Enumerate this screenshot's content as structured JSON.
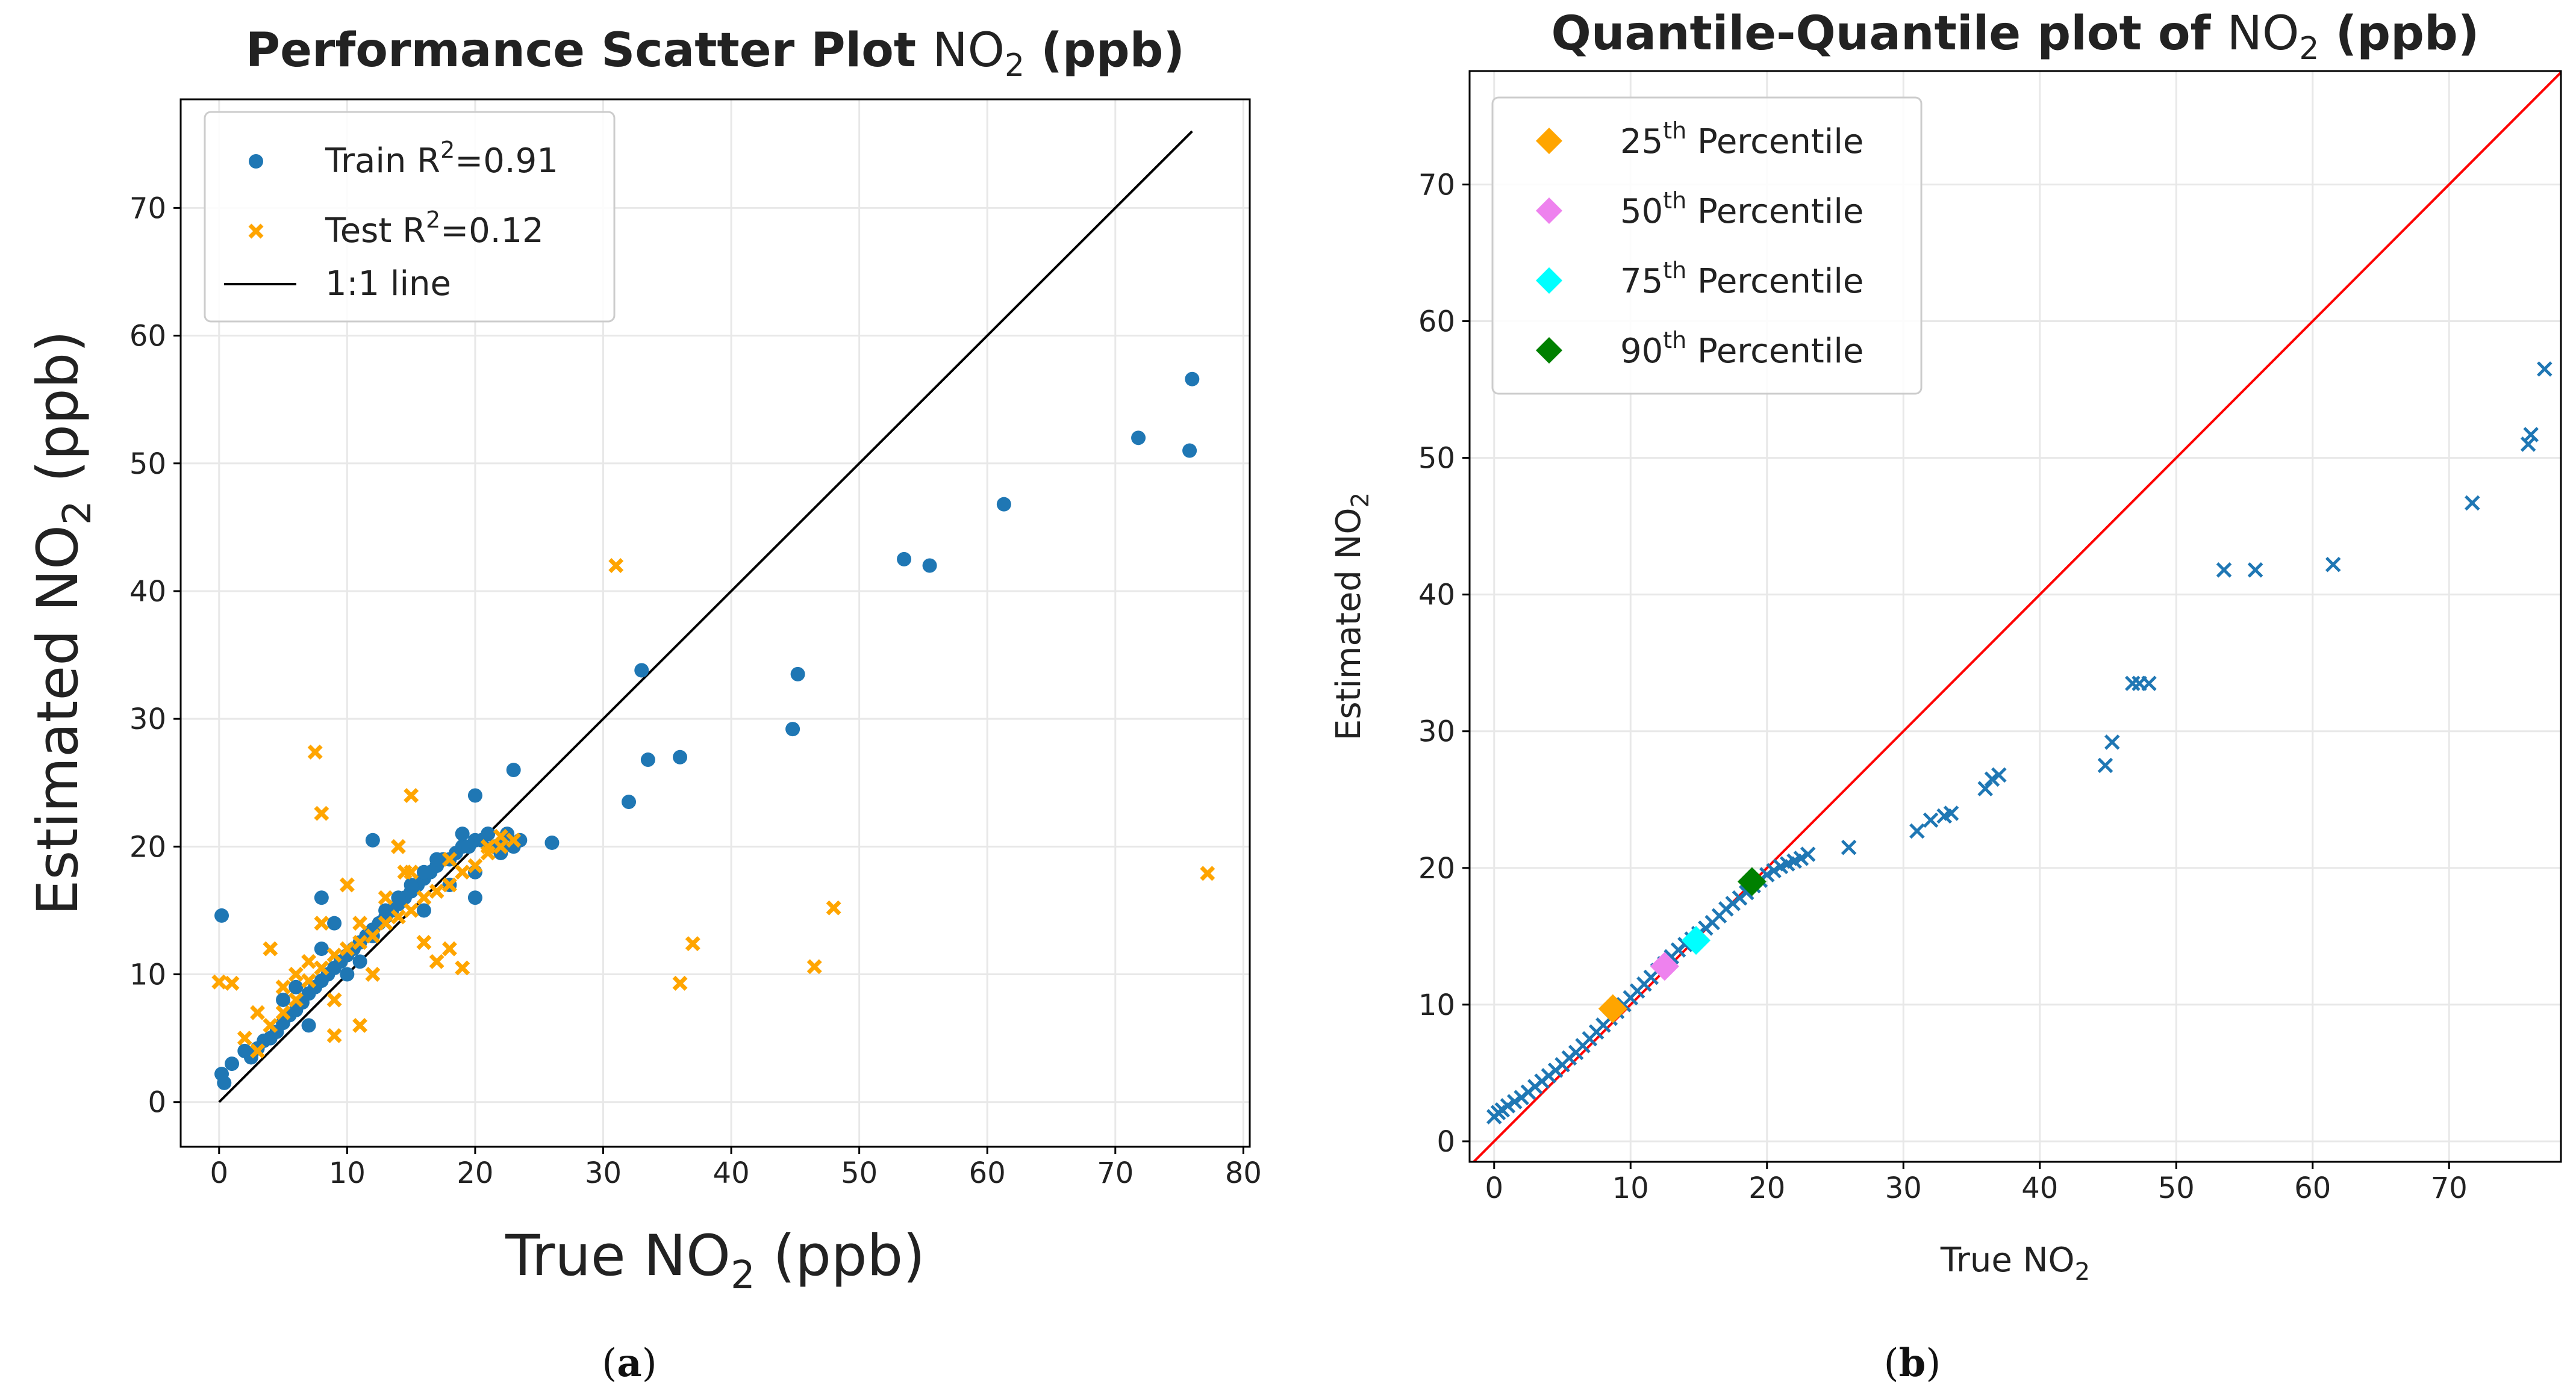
{
  "chart_data": [
    {
      "type": "scatter",
      "title": "Performance Scatter Plot",
      "title_species": "NO",
      "title_sub": "2",
      "title_unit": "(ppb)",
      "xlabel": "True NO",
      "xlabel_sub": "2",
      "xlabel_unit": "(ppb)",
      "ylabel": "Estimated NO",
      "ylabel_sub": "2",
      "ylabel_unit": "(ppb)",
      "xlim": [
        -3,
        80.5
      ],
      "ylim": [
        -3.5,
        78.5
      ],
      "xticks": [
        0,
        10,
        20,
        30,
        40,
        50,
        60,
        70,
        80
      ],
      "yticks": [
        0,
        10,
        20,
        30,
        40,
        50,
        60,
        70
      ],
      "grid": true,
      "legend": {
        "position": "top-left",
        "entries": [
          {
            "label": "Train R",
            "sup": "2",
            "suffix": "=0.91"
          },
          {
            "label": "Test R",
            "sup": "2",
            "suffix": "=0.12"
          },
          {
            "label": "1:1 line",
            "sup": "",
            "suffix": ""
          }
        ]
      },
      "line_1to1": {
        "x": [
          0,
          76
        ],
        "y": [
          0,
          76
        ],
        "color": "#000000"
      },
      "series": [
        {
          "name": "Train R²=0.91",
          "marker": "circle",
          "color": "#1f77b4",
          "x": [
            0.2,
            0.2,
            0.4,
            1,
            2,
            2.5,
            3,
            3.5,
            4,
            4.5,
            5,
            5.5,
            6,
            6.5,
            7,
            7.5,
            8,
            8.5,
            9,
            9.5,
            10,
            10.5,
            11,
            11.5,
            12,
            12.5,
            13,
            13.5,
            14,
            14.5,
            15,
            15.5,
            16,
            16.5,
            17,
            17.5,
            18,
            18.5,
            19,
            19.5,
            20,
            20.5,
            21,
            21.5,
            22,
            22.5,
            23,
            23.5,
            5,
            8,
            10,
            12,
            14,
            16,
            18,
            20,
            22,
            7,
            9,
            11,
            13,
            15,
            17,
            19,
            21,
            6,
            8,
            12,
            16,
            20,
            20,
            23,
            26,
            32,
            33,
            33.5,
            36,
            44.8,
            45.2,
            53.5,
            55.5,
            61.3,
            71.8,
            75.8,
            76
          ],
          "y": [
            14.6,
            2.2,
            1.5,
            3,
            4,
            3.5,
            4.2,
            4.8,
            5,
            5.5,
            6.2,
            6.8,
            7.2,
            7.8,
            8.5,
            9,
            9.5,
            10,
            10.5,
            11,
            11.5,
            12,
            12.5,
            13,
            13.5,
            14,
            14.5,
            15,
            15.5,
            16,
            16.5,
            17,
            17.5,
            18,
            18.5,
            19,
            19,
            19.5,
            20,
            20,
            20.5,
            20.5,
            21,
            20,
            19.5,
            21,
            20,
            20.5,
            8,
            12,
            10,
            13,
            16,
            15,
            17,
            18,
            20,
            6,
            14,
            11,
            15,
            17,
            19,
            21,
            21,
            9,
            16,
            20.5,
            18,
            16,
            24,
            26,
            20.3,
            23.5,
            33.8,
            26.8,
            27,
            29.2,
            33.5,
            42.5,
            42,
            46.8,
            52,
            51,
            56.6
          ]
        },
        {
          "name": "Test R²=0.12",
          "marker": "x",
          "color": "#ffa500",
          "x": [
            0,
            1,
            2,
            3,
            4,
            5,
            6,
            7,
            8,
            9,
            10,
            11,
            12,
            13,
            14,
            15,
            16,
            17,
            18,
            19,
            20,
            21,
            22,
            23,
            3,
            5,
            7,
            9,
            11,
            13,
            15,
            17,
            19,
            21,
            4,
            6,
            8,
            10,
            12,
            14,
            16,
            18,
            9,
            11,
            15,
            18,
            7.5,
            8,
            14.5,
            22,
            31,
            36,
            37,
            46.5,
            48,
            77.2
          ],
          "y": [
            9.4,
            9.3,
            5,
            4,
            6,
            7,
            8,
            9.5,
            10.5,
            11.5,
            12,
            12.5,
            13,
            14,
            14.5,
            15,
            16,
            16.5,
            17,
            18,
            18.5,
            19.5,
            20,
            20.5,
            7,
            9,
            11,
            8,
            14,
            16,
            18,
            11,
            10.5,
            20,
            12,
            10,
            14,
            17,
            10,
            20,
            12.5,
            19,
            5.2,
            6,
            24,
            12,
            27.4,
            22.6,
            18,
            20.8,
            42,
            9.3,
            12.4,
            10.6,
            15.2,
            17.9
          ]
        }
      ]
    },
    {
      "type": "scatter",
      "title": "Quantile-Quantile plot of",
      "title_species": "NO",
      "title_sub": "2",
      "title_unit": "(ppb)",
      "xlabel": "True NO",
      "xlabel_sub": "2",
      "ylabel": "Estimated NO",
      "ylabel_sub": "2",
      "xlim": [
        -1.8,
        78.2
      ],
      "ylim": [
        -1.5,
        78.3
      ],
      "xticks": [
        0,
        10,
        20,
        30,
        40,
        50,
        60,
        70
      ],
      "yticks": [
        0,
        10,
        20,
        30,
        40,
        50,
        60,
        70
      ],
      "grid": true,
      "legend": {
        "position": "top-left",
        "entries": [
          {
            "label": "25",
            "sup": "th",
            "suffix": " Percentile",
            "color": "#ffa500"
          },
          {
            "label": "50",
            "sup": "th",
            "suffix": " Percentile",
            "color": "#ee82ee"
          },
          {
            "label": "75",
            "sup": "th",
            "suffix": " Percentile",
            "color": "#00ffff"
          },
          {
            "label": "90",
            "sup": "th",
            "suffix": " Percentile",
            "color": "#008000"
          }
        ]
      },
      "line_1to1": {
        "x": [
          -1.8,
          78.2
        ],
        "y": [
          -1.8,
          78.2
        ],
        "color": "#ff0000"
      },
      "quantiles": {
        "x": [
          0,
          0.3,
          0.6,
          1,
          1.5,
          2,
          2.5,
          3,
          3.5,
          4,
          4.5,
          5,
          5.5,
          6,
          6.5,
          7,
          7.5,
          8,
          8.5,
          9,
          9.5,
          10,
          10.5,
          11,
          11.5,
          12,
          12.5,
          13,
          13.5,
          14,
          14.5,
          15,
          15.5,
          16,
          16.5,
          17,
          17.5,
          18,
          18.5,
          19,
          19.5,
          20,
          20.5,
          21,
          21.5,
          22,
          22.5,
          23,
          26,
          31,
          32,
          33,
          33.5,
          36,
          36.5,
          37,
          44.8,
          45.3,
          46.8,
          47.3,
          48,
          53.5,
          55.8,
          61.5,
          71.7,
          75.8,
          76,
          77
        ],
        "y": [
          1.8,
          2.1,
          2.3,
          2.6,
          2.9,
          3.2,
          3.6,
          4,
          4.4,
          4.8,
          5.2,
          5.6,
          6.1,
          6.5,
          7,
          7.5,
          8,
          8.5,
          9,
          9.5,
          10,
          10.5,
          11,
          11.5,
          12,
          12.5,
          13,
          13.5,
          14,
          14.4,
          14.8,
          15.2,
          15.6,
          16,
          16.5,
          17,
          17.4,
          17.8,
          18.2,
          18.7,
          19.1,
          19.5,
          19.8,
          20.1,
          20.3,
          20.5,
          20.7,
          21,
          21.5,
          22.7,
          23.5,
          23.8,
          24,
          25.8,
          26.5,
          26.8,
          27.5,
          29.2,
          33.5,
          33.5,
          33.5,
          41.8,
          41.8,
          42.2,
          46.7,
          51,
          51.7,
          56.5
        ]
      },
      "percentiles": [
        {
          "name": "25th Percentile",
          "x": 8.7,
          "y": 9.7,
          "color": "#ffa500"
        },
        {
          "name": "50th Percentile",
          "x": 12.5,
          "y": 12.8,
          "color": "#ee82ee"
        },
        {
          "name": "75th Percentile",
          "x": 14.8,
          "y": 14.7,
          "color": "#00ffff"
        },
        {
          "name": "90th Percentile",
          "x": 18.9,
          "y": 19.0,
          "color": "#008000"
        }
      ]
    }
  ],
  "captions": {
    "a_label": "a",
    "b_label": "b"
  }
}
